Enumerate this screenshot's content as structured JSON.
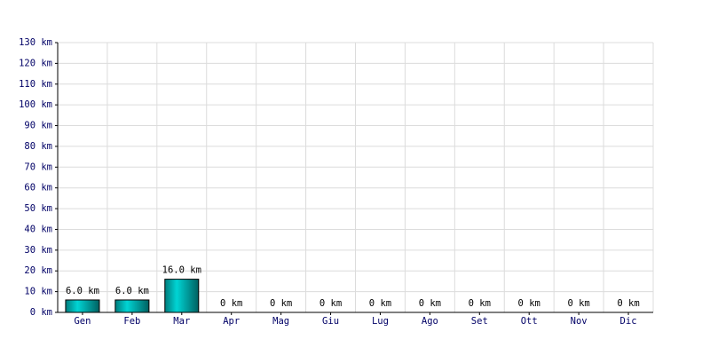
{
  "chart_data": {
    "type": "bar",
    "categories": [
      "Gen",
      "Feb",
      "Mar",
      "Apr",
      "Mag",
      "Giu",
      "Lug",
      "Ago",
      "Set",
      "Ott",
      "Nov",
      "Dic"
    ],
    "values": [
      6,
      6,
      16,
      0,
      0,
      0,
      0,
      0,
      0,
      0,
      0,
      0
    ],
    "value_labels": [
      "6.0 km",
      "6.0 km",
      "16.0 km",
      "0 km",
      "0 km",
      "0 km",
      "0 km",
      "0 km",
      "0 km",
      "0 km",
      "0 km",
      "0 km"
    ],
    "color": "#00d4d4",
    "ylim": [
      0,
      130
    ],
    "yticks": [
      {
        "value": 0,
        "label": "0 km"
      },
      {
        "value": 10,
        "label": "10 km"
      },
      {
        "value": 20,
        "label": "20 km"
      },
      {
        "value": 30,
        "label": "30 km"
      },
      {
        "value": 40,
        "label": "40 km"
      },
      {
        "value": 50,
        "label": "50 km"
      },
      {
        "value": 60,
        "label": "60 km"
      },
      {
        "value": 70,
        "label": "70 km"
      },
      {
        "value": 80,
        "label": "80 km"
      },
      {
        "value": 90,
        "label": "90 km"
      },
      {
        "value": 100,
        "label": "100 km"
      },
      {
        "value": 110,
        "label": "110 km"
      },
      {
        "value": 120,
        "label": "120 km"
      },
      {
        "value": 130,
        "label": "130 km"
      }
    ],
    "grid": true
  }
}
